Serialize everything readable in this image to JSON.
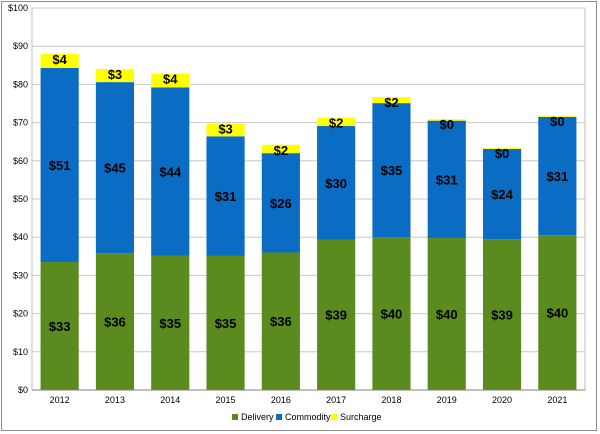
{
  "chart_data": {
    "type": "bar",
    "stacked": true,
    "categories": [
      "2012",
      "2013",
      "2014",
      "2015",
      "2016",
      "2017",
      "2018",
      "2019",
      "2020",
      "2021"
    ],
    "series": [
      {
        "name": "Delivery",
        "color": "#5b8a1e",
        "values": [
          33.5,
          35.8,
          35.2,
          35.1,
          36.0,
          39.4,
          40.0,
          39.8,
          39.5,
          40.5
        ],
        "labels": [
          "$33",
          "$36",
          "$35",
          "$35",
          "$36",
          "$39",
          "$40",
          "$40",
          "$39",
          "$40"
        ]
      },
      {
        "name": "Commodity",
        "color": "#0b6cc4",
        "values": [
          50.8,
          44.8,
          44.0,
          31.3,
          26.0,
          29.7,
          35.1,
          30.7,
          23.6,
          31.0
        ],
        "labels": [
          "$51",
          "$45",
          "$44",
          "$31",
          "$26",
          "$30",
          "$35",
          "$31",
          "$24",
          "$31"
        ]
      },
      {
        "name": "Surcharge",
        "color": "#ffff00",
        "values": [
          3.7,
          3.4,
          3.6,
          3.3,
          2.2,
          2.2,
          1.6,
          0.4,
          0.2,
          0.2
        ],
        "labels": [
          "$4",
          "$3",
          "$4",
          "$3",
          "$2",
          "$2",
          "$2",
          "$0",
          "$0",
          "$0"
        ]
      }
    ],
    "y_ticks": [
      "$0",
      "$10",
      "$20",
      "$30",
      "$40",
      "$50",
      "$60",
      "$70",
      "$80",
      "$90",
      "$100"
    ],
    "ylim": [
      0,
      100
    ],
    "grid": true,
    "legend_position": "bottom"
  }
}
